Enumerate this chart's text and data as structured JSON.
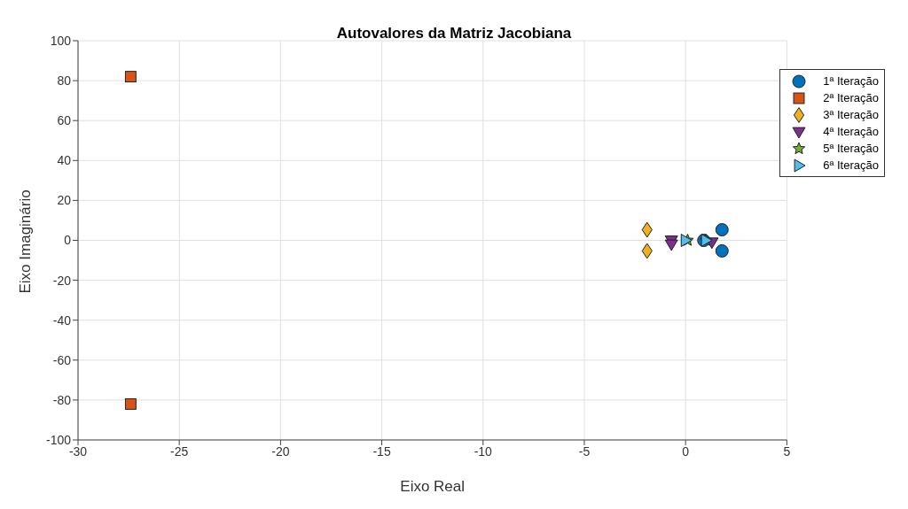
{
  "chart_data": {
    "type": "scatter",
    "title": "Autovalores da Matriz Jacobiana",
    "xlabel": "Eixo Real",
    "ylabel": "Eixo Imaginário",
    "xlim": [
      -30,
      5
    ],
    "xticks": [
      -30,
      -25,
      -20,
      -15,
      -10,
      -5,
      0,
      5
    ],
    "ylim": [
      -100,
      100
    ],
    "yticks": [
      -100,
      -80,
      -60,
      -40,
      -20,
      0,
      20,
      40,
      60,
      80,
      100
    ],
    "grid": true,
    "legend": "top right",
    "series": [
      {
        "name": "1ª Iteração",
        "color": "#0072bd",
        "marker": "circle",
        "x": [
          1.8,
          1.8,
          0.9
        ],
        "values": [
          5.3,
          -5.3,
          0
        ]
      },
      {
        "name": "2ª Iteração",
        "color": "#d95319",
        "marker": "square",
        "x": [
          -27.4,
          -27.4
        ],
        "values": [
          82,
          -82
        ]
      },
      {
        "name": "3ª Iteração",
        "color": "#edb120",
        "marker": "diamond",
        "x": [
          -1.9,
          -1.9
        ],
        "values": [
          5.3,
          -5.3
        ]
      },
      {
        "name": "4ª Iteração",
        "color": "#7e2f8e",
        "marker": "triangle-down",
        "x": [
          -0.7,
          -0.7,
          1.3
        ],
        "values": [
          0,
          -2,
          -1
        ]
      },
      {
        "name": "5ª Iteração",
        "color": "#77ac30",
        "marker": "star",
        "x": [
          0.1,
          1.0
        ],
        "values": [
          0,
          0
        ]
      },
      {
        "name": "6ª Iteração",
        "color": "#4dbeee",
        "marker": "triangle-right",
        "x": [
          0.0,
          1.0
        ],
        "values": [
          0,
          0
        ]
      }
    ]
  }
}
